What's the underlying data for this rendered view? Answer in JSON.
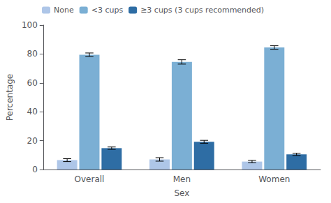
{
  "chart_data": {
    "type": "bar",
    "xlabel": "Sex",
    "ylabel": "Percentage",
    "categories": [
      "Overall",
      "Men",
      "Women"
    ],
    "series": [
      {
        "name": "None",
        "color": "#aec6e8",
        "values": [
          6.5,
          7.0,
          5.5
        ],
        "errors": [
          1.0,
          1.2,
          0.8
        ]
      },
      {
        "name": "<3 cups",
        "color": "#7bafd4",
        "values": [
          79.5,
          74.5,
          84.5
        ],
        "errors": [
          1.2,
          1.5,
          1.2
        ]
      },
      {
        "name": "≥3 cups (3 cups recommended)",
        "color": "#2e6da4",
        "values": [
          14.8,
          19.2,
          10.5
        ],
        "errors": [
          0.8,
          1.0,
          0.8
        ]
      }
    ],
    "ylim": [
      0,
      100
    ],
    "yticks": [
      0,
      20,
      40,
      60,
      80,
      100
    ],
    "grid": false,
    "legend": "upper left"
  }
}
